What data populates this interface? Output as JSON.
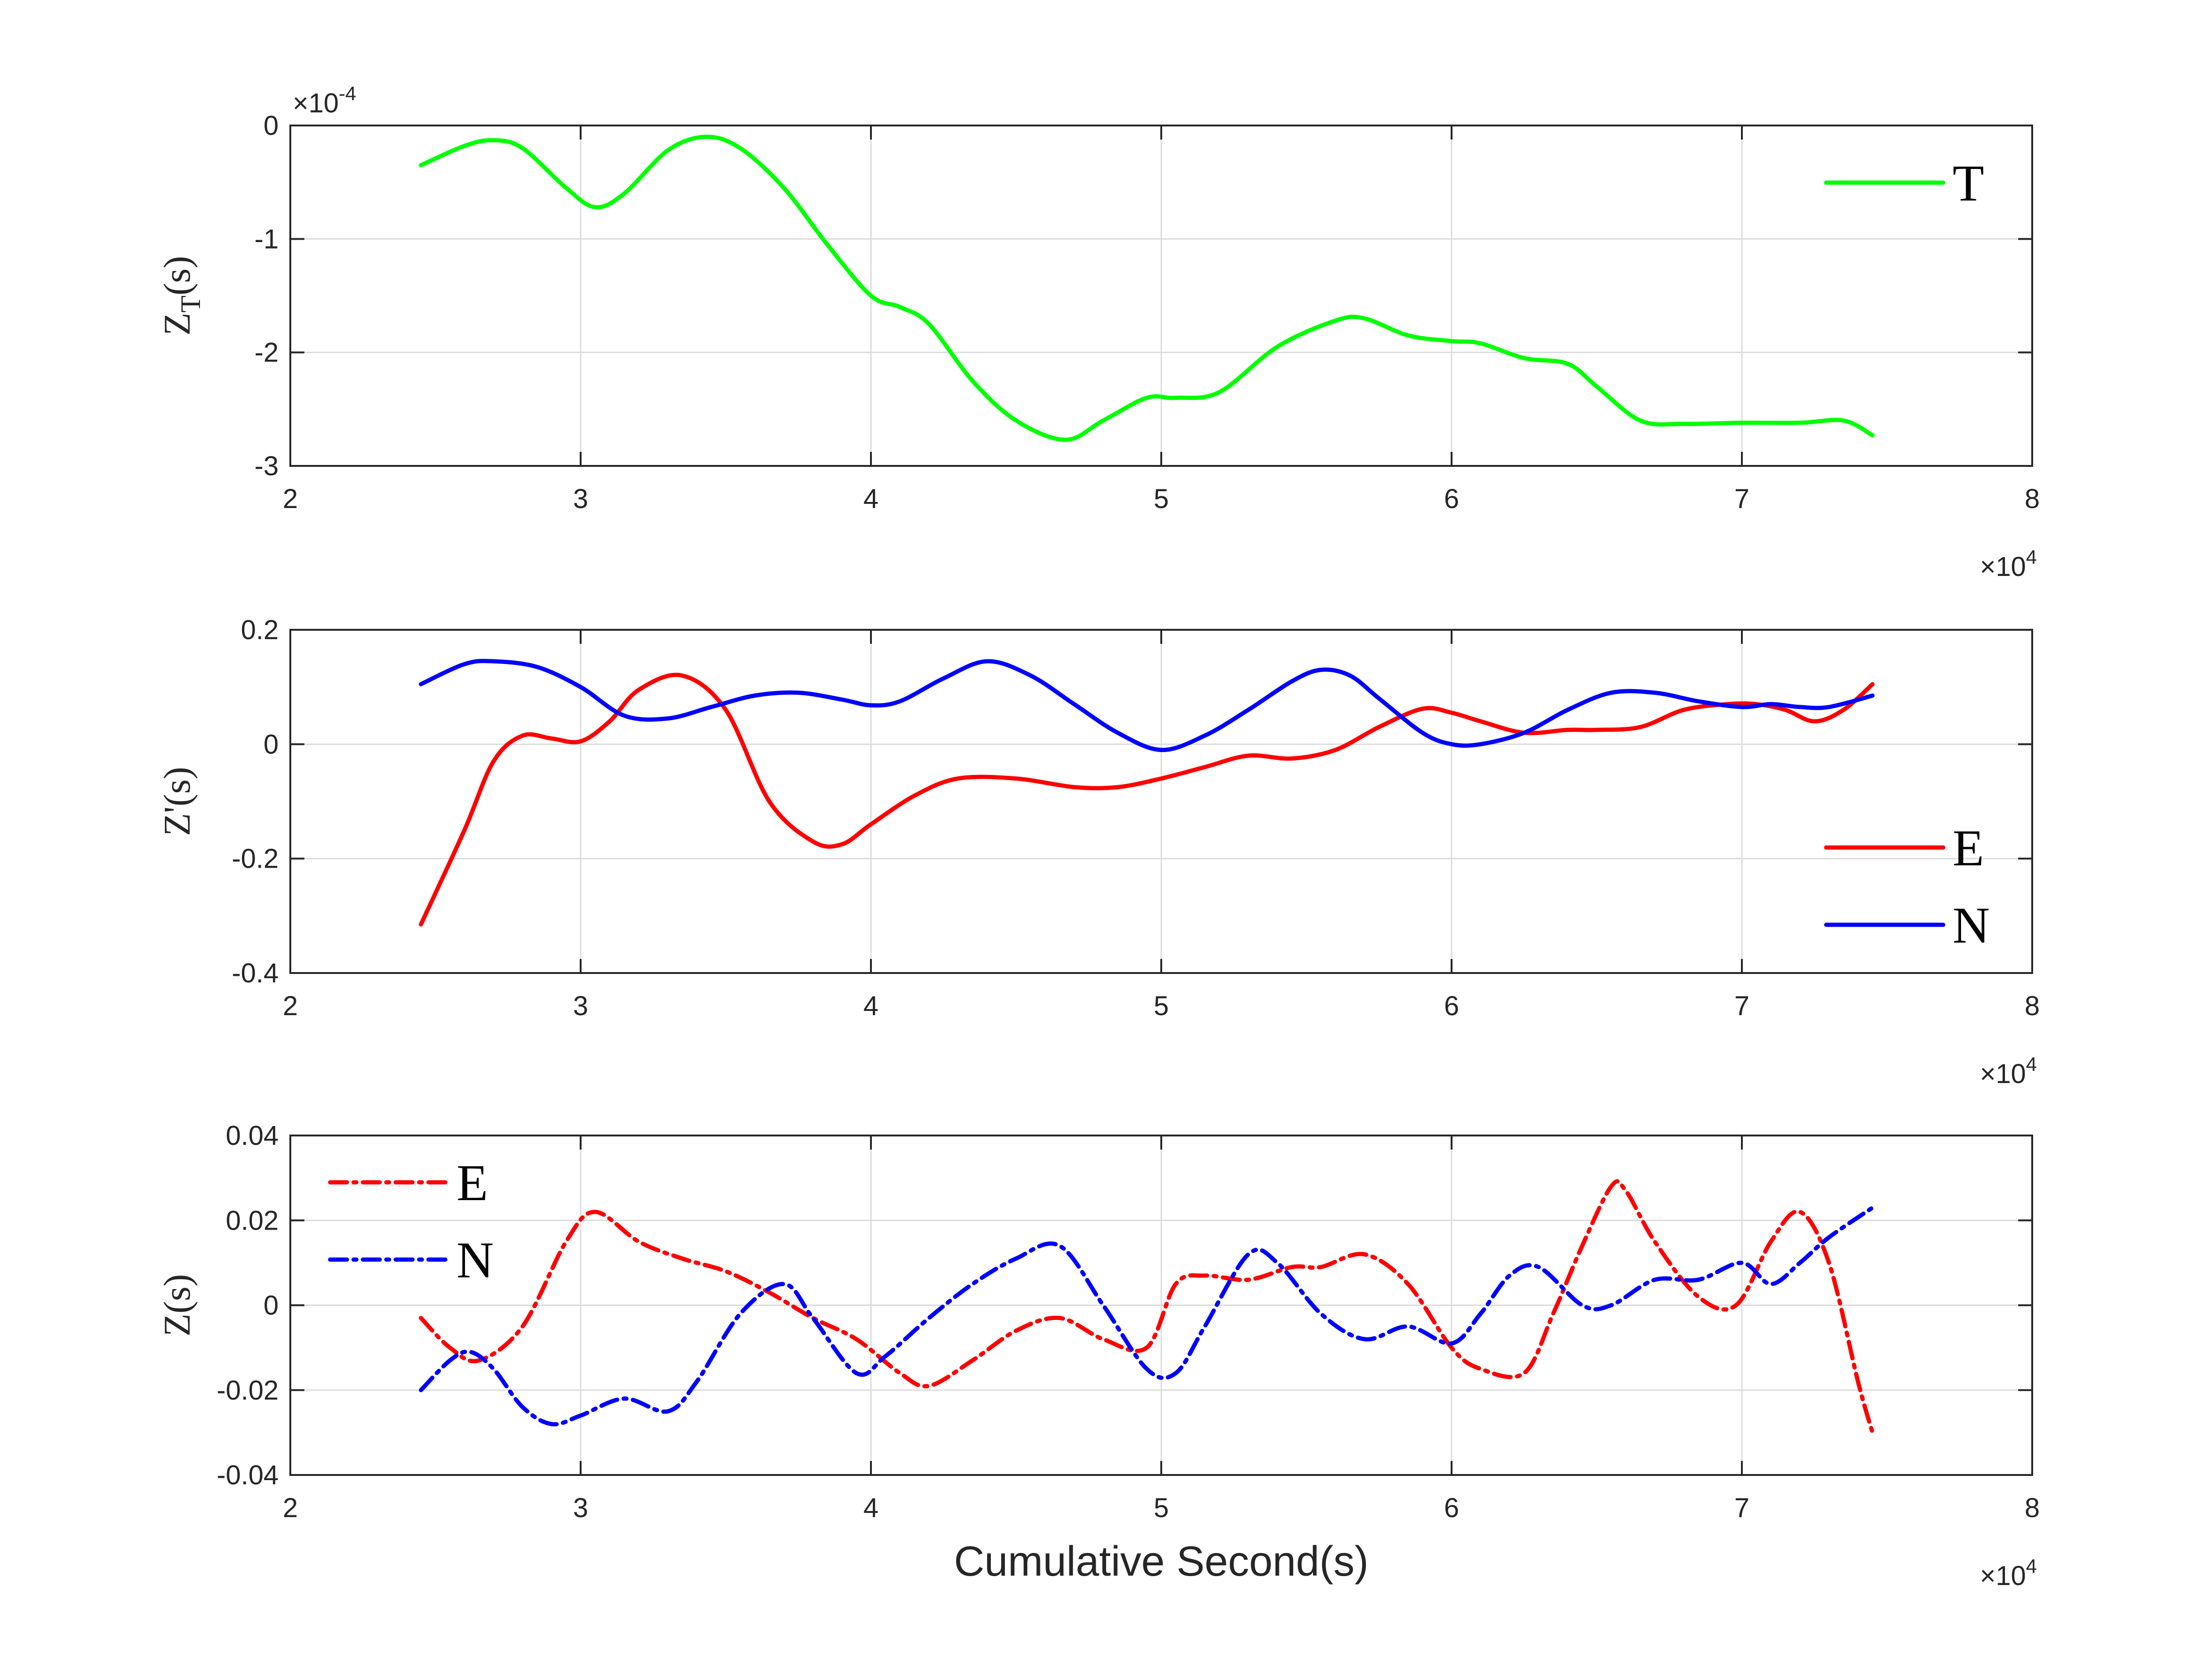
{
  "colors": {
    "T": "#00ff00",
    "E": "#ff0000",
    "N": "#0000ff",
    "axis": "#262626",
    "grid": "#dcdcdc"
  },
  "chart_data": [
    {
      "type": "line",
      "xlabel": "",
      "ylabel_main": "Z",
      "ylabel_sub": "T",
      "ylabel_tail": "(s)",
      "xlim": [
        2,
        8
      ],
      "ylim": [
        -3,
        0
      ],
      "xticks": [
        "2",
        "3",
        "4",
        "5",
        "6",
        "7",
        "8"
      ],
      "yticks": [
        "-3",
        "-2",
        "-1",
        "0"
      ],
      "x_exponent": "4",
      "y_exponent": "-4",
      "legend_position": "top-right",
      "series": [
        {
          "name": "T",
          "style": "solid",
          "x": [
            2.45,
            2.6,
            2.7,
            2.8,
            2.95,
            3.05,
            3.15,
            3.3,
            3.43,
            3.55,
            3.7,
            3.85,
            4.0,
            4.1,
            4.2,
            4.35,
            4.5,
            4.67,
            4.8,
            4.95,
            5.05,
            5.2,
            5.4,
            5.6,
            5.7,
            5.85,
            6.0,
            6.1,
            6.25,
            6.4,
            6.5,
            6.65,
            6.8,
            7.0,
            7.2,
            7.35,
            7.45
          ],
          "y": [
            -0.35,
            -0.18,
            -0.13,
            -0.2,
            -0.55,
            -0.72,
            -0.6,
            -0.22,
            -0.1,
            -0.2,
            -0.55,
            -1.05,
            -1.5,
            -1.6,
            -1.75,
            -2.25,
            -2.6,
            -2.77,
            -2.6,
            -2.4,
            -2.4,
            -2.35,
            -1.95,
            -1.72,
            -1.7,
            -1.85,
            -1.9,
            -1.92,
            -2.05,
            -2.1,
            -2.3,
            -2.6,
            -2.63,
            -2.62,
            -2.62,
            -2.6,
            -2.73
          ]
        }
      ]
    },
    {
      "type": "line",
      "xlabel": "",
      "ylabel": "Z'(s)",
      "xlim": [
        2,
        8
      ],
      "ylim": [
        -0.4,
        0.2
      ],
      "xticks": [
        "2",
        "3",
        "4",
        "5",
        "6",
        "7",
        "8"
      ],
      "yticks": [
        "-0.4",
        "-0.2",
        "0",
        "0.2"
      ],
      "x_exponent": "4",
      "legend_position": "bottom-right",
      "series": [
        {
          "name": "E",
          "style": "solid",
          "x": [
            2.45,
            2.6,
            2.7,
            2.8,
            2.9,
            3.0,
            3.1,
            3.2,
            3.35,
            3.5,
            3.65,
            3.8,
            3.9,
            4.0,
            4.15,
            4.3,
            4.5,
            4.7,
            4.85,
            5.0,
            5.15,
            5.3,
            5.45,
            5.6,
            5.75,
            5.9,
            6.0,
            6.1,
            6.25,
            6.4,
            6.5,
            6.65,
            6.8,
            6.95,
            7.05,
            7.15,
            7.25,
            7.35,
            7.45
          ],
          "y": [
            -0.315,
            -0.15,
            -0.03,
            0.015,
            0.01,
            0.005,
            0.04,
            0.095,
            0.12,
            0.06,
            -0.1,
            -0.17,
            -0.175,
            -0.14,
            -0.09,
            -0.06,
            -0.06,
            -0.075,
            -0.075,
            -0.06,
            -0.04,
            -0.02,
            -0.025,
            -0.01,
            0.03,
            0.062,
            0.055,
            0.04,
            0.02,
            0.025,
            0.025,
            0.03,
            0.06,
            0.07,
            0.07,
            0.06,
            0.04,
            0.06,
            0.105
          ]
        },
        {
          "name": "N",
          "style": "solid",
          "x": [
            2.45,
            2.6,
            2.7,
            2.85,
            3.0,
            3.15,
            3.3,
            3.45,
            3.6,
            3.75,
            3.9,
            4.0,
            4.1,
            4.25,
            4.4,
            4.55,
            4.7,
            4.85,
            5.0,
            5.15,
            5.3,
            5.45,
            5.55,
            5.65,
            5.75,
            5.9,
            6.0,
            6.1,
            6.25,
            6.4,
            6.55,
            6.7,
            6.85,
            7.0,
            7.1,
            7.2,
            7.3,
            7.45
          ],
          "y": [
            0.105,
            0.14,
            0.145,
            0.135,
            0.1,
            0.05,
            0.045,
            0.065,
            0.085,
            0.09,
            0.078,
            0.068,
            0.075,
            0.115,
            0.145,
            0.12,
            0.07,
            0.02,
            -0.01,
            0.015,
            0.06,
            0.11,
            0.13,
            0.12,
            0.08,
            0.02,
            0.0,
            0.0,
            0.02,
            0.06,
            0.09,
            0.09,
            0.075,
            0.065,
            0.07,
            0.065,
            0.065,
            0.085
          ]
        }
      ]
    },
    {
      "type": "line",
      "xlabel": "Cumulative Second(s)",
      "ylabel": "Z(s)",
      "xlim": [
        2,
        8
      ],
      "ylim": [
        -0.04,
        0.04
      ],
      "xticks": [
        "2",
        "3",
        "4",
        "5",
        "6",
        "7",
        "8"
      ],
      "yticks": [
        "-0.04",
        "-0.02",
        "0",
        "0.02",
        "0.04"
      ],
      "x_exponent": "4",
      "legend_position": "top-left",
      "series": [
        {
          "name": "E",
          "style": "dash-dot",
          "x": [
            2.45,
            2.55,
            2.65,
            2.8,
            2.95,
            3.05,
            3.2,
            3.35,
            3.5,
            3.65,
            3.8,
            3.95,
            4.1,
            4.2,
            4.35,
            4.5,
            4.65,
            4.8,
            4.95,
            5.05,
            5.15,
            5.3,
            5.45,
            5.55,
            5.7,
            5.85,
            6.0,
            6.1,
            6.25,
            6.35,
            6.45,
            6.55,
            6.6,
            6.7,
            6.85,
            6.98,
            7.1,
            7.2,
            7.3,
            7.4,
            7.45
          ],
          "y": [
            -0.003,
            -0.01,
            -0.013,
            -0.005,
            0.015,
            0.022,
            0.015,
            0.011,
            0.008,
            0.003,
            -0.003,
            -0.008,
            -0.016,
            -0.019,
            -0.013,
            -0.006,
            -0.003,
            -0.008,
            -0.01,
            0.005,
            0.007,
            0.006,
            0.009,
            0.009,
            0.012,
            0.005,
            -0.01,
            -0.015,
            -0.016,
            -0.002,
            0.014,
            0.028,
            0.027,
            0.015,
            0.002,
            0.0,
            0.015,
            0.022,
            0.01,
            -0.018,
            -0.03
          ]
        },
        {
          "name": "N",
          "style": "dash-dot",
          "x": [
            2.45,
            2.55,
            2.62,
            2.7,
            2.8,
            2.9,
            3.0,
            3.15,
            3.3,
            3.4,
            3.55,
            3.7,
            3.8,
            3.95,
            4.05,
            4.2,
            4.35,
            4.5,
            4.65,
            4.8,
            4.95,
            5.05,
            5.15,
            5.3,
            5.4,
            5.55,
            5.7,
            5.85,
            6.0,
            6.1,
            6.2,
            6.3,
            6.45,
            6.55,
            6.7,
            6.85,
            7.0,
            7.1,
            7.2,
            7.3,
            7.45
          ],
          "y": [
            -0.02,
            -0.013,
            -0.011,
            -0.015,
            -0.024,
            -0.028,
            -0.026,
            -0.022,
            -0.025,
            -0.018,
            -0.002,
            0.005,
            -0.003,
            -0.016,
            -0.012,
            -0.003,
            0.005,
            0.011,
            0.014,
            0.0,
            -0.015,
            -0.016,
            -0.005,
            0.012,
            0.01,
            -0.002,
            -0.008,
            -0.005,
            -0.009,
            -0.002,
            0.007,
            0.009,
            0.0,
            0.0,
            0.006,
            0.006,
            0.01,
            0.005,
            0.01,
            0.016,
            0.023
          ]
        }
      ]
    }
  ]
}
